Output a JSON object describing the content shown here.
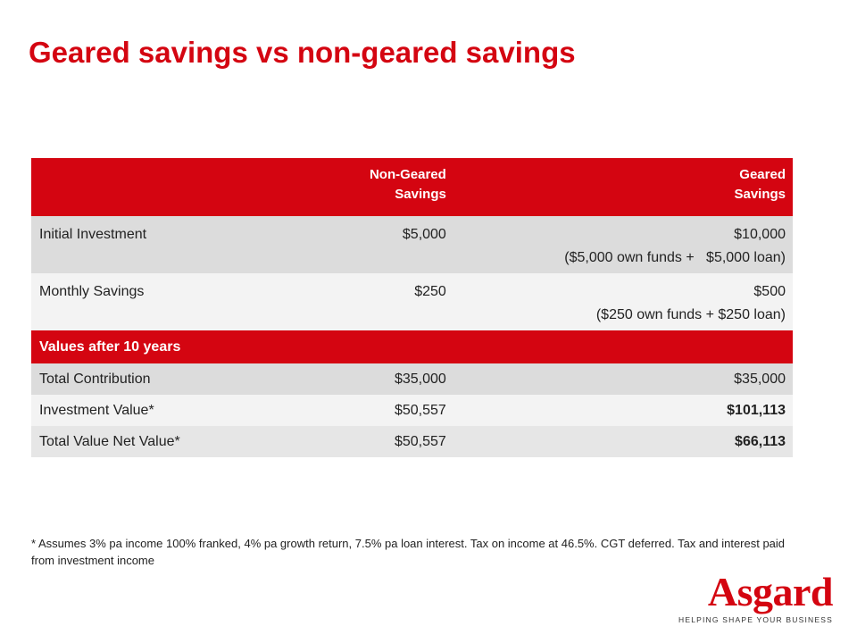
{
  "title": "Geared savings vs non-geared savings",
  "table": {
    "header": {
      "col1": "",
      "col2_line1": "Non-Geared",
      "col2_line2": "Savings",
      "col3_line1": "Geared",
      "col3_line2": "Savings"
    },
    "rows_top": [
      {
        "label": "Initial Investment",
        "non_geared": "$5,000",
        "geared_line1": "$10,000",
        "geared_line2": "($5,000 own funds +   $5,000 loan)"
      },
      {
        "label": "Monthly Savings",
        "non_geared": "$250",
        "geared_line1": "$500",
        "geared_line2": "($250 own funds + $250 loan)"
      }
    ],
    "section_label": "Values after 10 years",
    "rows_bottom": [
      {
        "label": "Total Contribution",
        "non_geared": "$35,000",
        "geared": "$35,000"
      },
      {
        "label": "Investment Value*",
        "non_geared": "$50,557",
        "geared": "$101,113"
      },
      {
        "label": "Total Value Net Value*",
        "non_geared": "$50,557",
        "geared": "$66,113"
      }
    ]
  },
  "footnote": "* Assumes 3% pa income 100% franked, 4% pa growth  return, 7.5% pa loan interest. Tax on income at 46.5%. CGT deferred. Tax and interest paid from investment income",
  "logo": {
    "wordmark": "Asgard",
    "tagline": "HELPING SHAPE YOUR BUSINESS"
  },
  "colors": {
    "brand_red": "#d40511",
    "row_dark": "#dcdcdc",
    "row_light": "#f3f3f3"
  }
}
